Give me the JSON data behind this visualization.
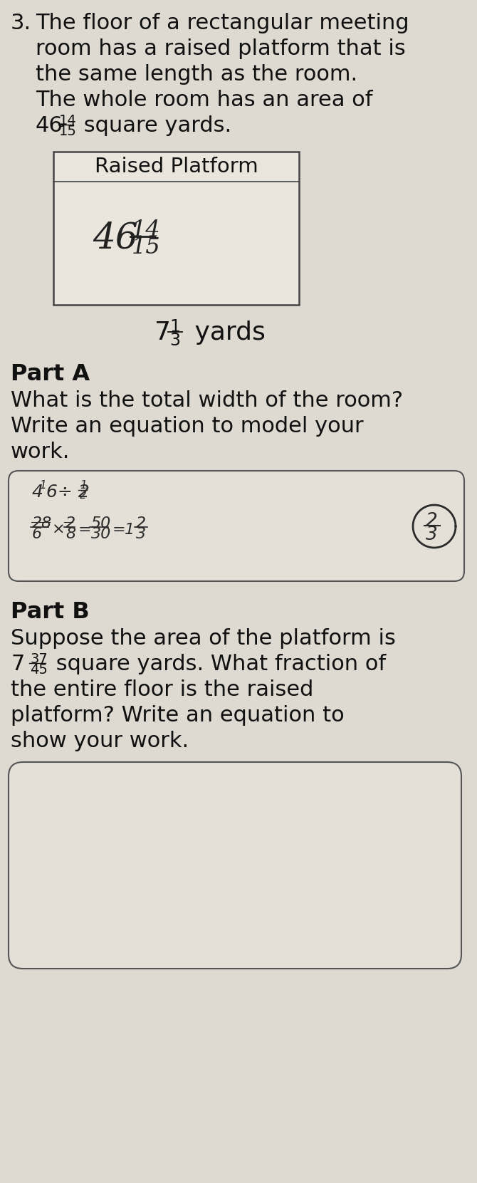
{
  "bg_color": "#c8c4bc",
  "page_color": "#dedad2",
  "text_color": "#111111",
  "box_bg": "#e0dcd4",
  "answer_box_bg": "#dedad2",
  "problem_number": "3.",
  "line1": "The floor of a rectangular meeting",
  "line2": "room has a raised platform that is",
  "line3": "the same length as the room.",
  "line4": "The whole room has an area of",
  "line5_whole": "46",
  "line5_num": "14",
  "line5_den": "15",
  "line5_rest": " square yards.",
  "box_label": "Raised Platform",
  "box_num": "46",
  "box_frac_num": "14",
  "box_frac_den": "15",
  "yards_whole": "7",
  "yards_num": "1",
  "yards_den": "3",
  "yards_unit": " yards",
  "part_a": "Part A",
  "part_a_q1": "What is the total width of the room?",
  "part_a_q2": "Write an equation to model your",
  "part_a_q3": "work.",
  "part_b": "Part B",
  "part_b_l1": "Suppose the area of the platform is",
  "part_b_l2_whole": "7",
  "part_b_l2_num": "37",
  "part_b_l2_den": "45",
  "part_b_l2_rest": " square yards. What fraction of",
  "part_b_l3": "the entire floor is the raised",
  "part_b_l4": "platform? Write an equation to",
  "part_b_l5": "show your work."
}
